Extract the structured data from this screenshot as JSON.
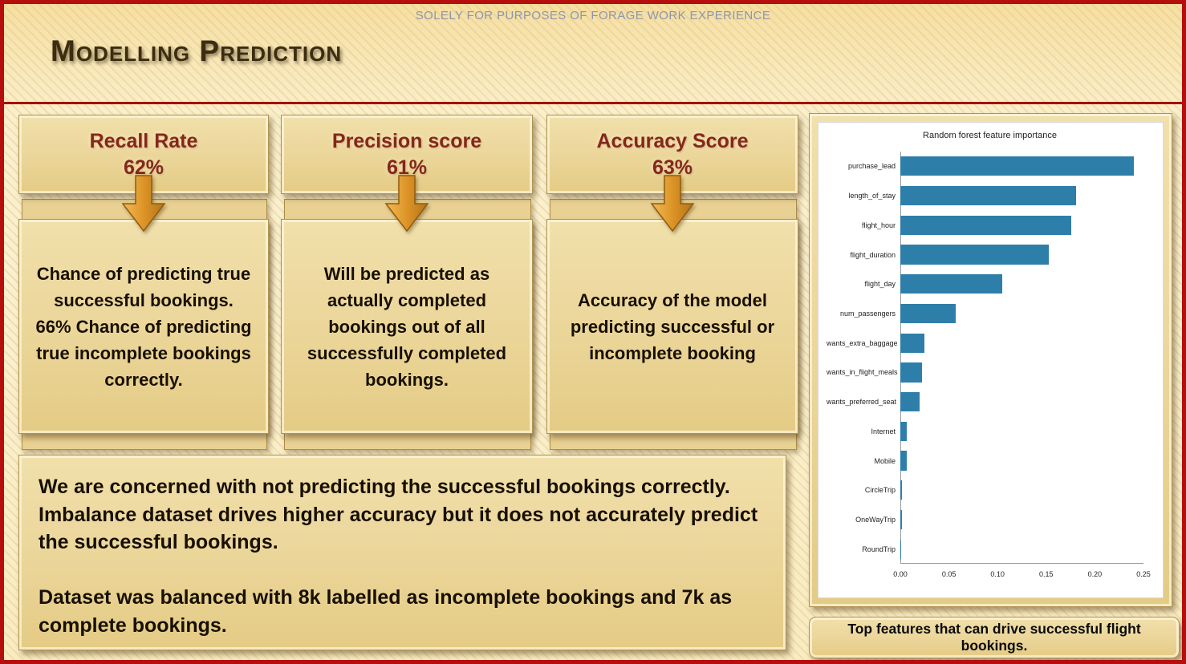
{
  "slide": {
    "disclaimer": "SOLELY FOR PURPOSES OF FORAGE WORK EXPERIENCE",
    "title": "Modelling Prediction"
  },
  "metrics": [
    {
      "label": "Recall Rate",
      "value": "62%",
      "description": "Chance of predicting true successful bookings.\n66% Chance of predicting true incomplete bookings correctly."
    },
    {
      "label": "Precision score",
      "value": "61%",
      "description": "Will be predicted as actually completed bookings out of all successfully completed bookings."
    },
    {
      "label": "Accuracy Score",
      "value": "63%",
      "description": "Accuracy of the model predicting successful or incomplete booking"
    }
  ],
  "summary_text": "We are concerned with not predicting the successful bookings correctly.\nImbalance dataset drives higher accuracy but it does not accurately predict the successful bookings.\n\nDataset was balanced with 8k labelled as incomplete bookings and 7k as complete bookings.",
  "caption": "Top features that can drive successful flight bookings.",
  "chart_data": {
    "type": "bar",
    "orientation": "horizontal",
    "title": "Random forest feature importance",
    "categories": [
      "purchase_lead",
      "length_of_stay",
      "flight_hour",
      "flight_duration",
      "flight_day",
      "num_passengers",
      "wants_extra_baggage",
      "wants_in_flight_meals",
      "wants_preferred_seat",
      "Internet",
      "Mobile",
      "CircleTrip",
      "OneWayTrip",
      "RoundTrip"
    ],
    "values": [
      0.24,
      0.181,
      0.176,
      0.153,
      0.105,
      0.057,
      0.025,
      0.022,
      0.02,
      0.007,
      0.007,
      0.002,
      0.002,
      0.001
    ],
    "xlabel": "",
    "ylabel": "",
    "xlim": [
      0,
      0.25
    ],
    "x_ticks": [
      "0.00",
      "0.05",
      "0.10",
      "0.15",
      "0.20",
      "0.25"
    ],
    "grid": false,
    "legend": false
  },
  "colors": {
    "border_red": "#b60d0d",
    "panel_tan": "#ecd79c",
    "metric_text": "#84281a",
    "arrow_orange": "#dd9426",
    "bar_blue": "#2e7eaa"
  }
}
